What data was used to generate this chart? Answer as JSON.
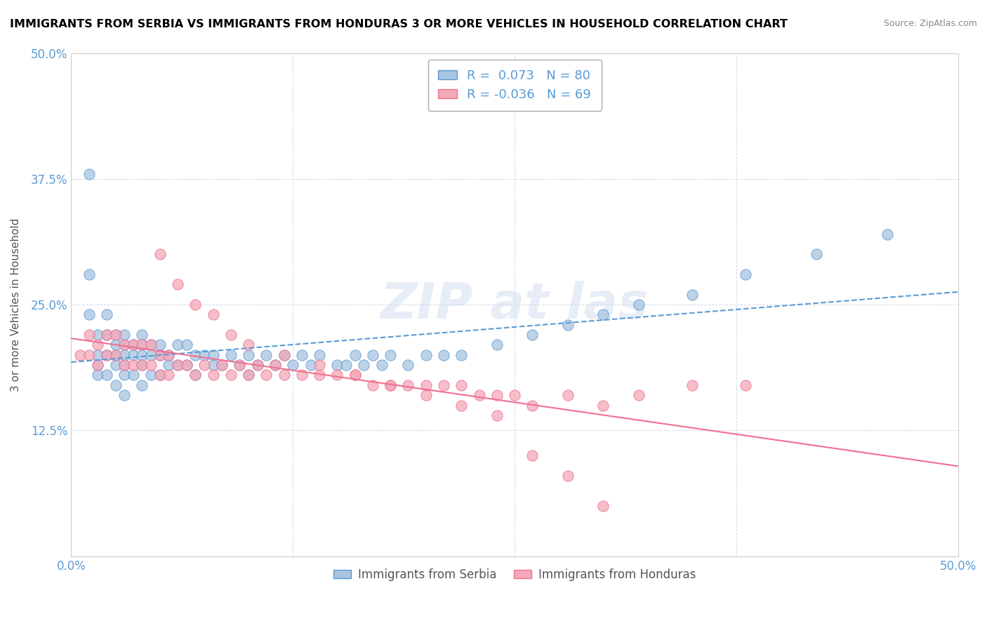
{
  "title": "IMMIGRANTS FROM SERBIA VS IMMIGRANTS FROM HONDURAS 3 OR MORE VEHICLES IN HOUSEHOLD CORRELATION CHART",
  "source": "Source: ZipAtlas.com",
  "xlabel_bottom": "",
  "ylabel": "3 or more Vehicles in Household",
  "xmin": 0.0,
  "xmax": 0.5,
  "ymin": 0.0,
  "ymax": 0.5,
  "xticks": [
    0.0,
    0.125,
    0.25,
    0.375,
    0.5
  ],
  "yticks": [
    0.0,
    0.125,
    0.25,
    0.375,
    0.5
  ],
  "xtick_labels": [
    "0.0%",
    "",
    "",
    "",
    "50.0%"
  ],
  "ytick_labels": [
    "",
    "12.5%",
    "25.0%",
    "37.5%",
    "50.0%"
  ],
  "serbia_color": "#a8c4e0",
  "honduras_color": "#f4a8b8",
  "serbia_R": 0.073,
  "serbia_N": 80,
  "honduras_R": -0.036,
  "honduras_N": 69,
  "serbia_trend_color": "#5b9bd5",
  "honduras_trend_color": "#f07090",
  "legend_label_serbia": "Immigrants from Serbia",
  "legend_label_honduras": "Immigrants from Honduras",
  "watermark": "ZIPat las",
  "serbia_x": [
    0.01,
    0.01,
    0.01,
    0.015,
    0.015,
    0.015,
    0.015,
    0.02,
    0.02,
    0.02,
    0.02,
    0.025,
    0.025,
    0.025,
    0.025,
    0.025,
    0.03,
    0.03,
    0.03,
    0.03,
    0.03,
    0.03,
    0.035,
    0.035,
    0.035,
    0.04,
    0.04,
    0.04,
    0.04,
    0.04,
    0.045,
    0.045,
    0.045,
    0.05,
    0.05,
    0.05,
    0.055,
    0.055,
    0.06,
    0.06,
    0.065,
    0.065,
    0.07,
    0.07,
    0.075,
    0.08,
    0.08,
    0.085,
    0.09,
    0.095,
    0.1,
    0.1,
    0.105,
    0.11,
    0.115,
    0.12,
    0.125,
    0.13,
    0.135,
    0.14,
    0.15,
    0.155,
    0.16,
    0.165,
    0.17,
    0.175,
    0.18,
    0.19,
    0.2,
    0.21,
    0.22,
    0.24,
    0.26,
    0.28,
    0.3,
    0.32,
    0.35,
    0.38,
    0.42,
    0.46
  ],
  "serbia_y": [
    0.38,
    0.28,
    0.24,
    0.22,
    0.2,
    0.19,
    0.18,
    0.24,
    0.22,
    0.2,
    0.18,
    0.22,
    0.21,
    0.2,
    0.19,
    0.17,
    0.22,
    0.21,
    0.2,
    0.19,
    0.18,
    0.16,
    0.21,
    0.2,
    0.18,
    0.22,
    0.21,
    0.2,
    0.19,
    0.17,
    0.21,
    0.2,
    0.18,
    0.21,
    0.2,
    0.18,
    0.2,
    0.19,
    0.21,
    0.19,
    0.21,
    0.19,
    0.2,
    0.18,
    0.2,
    0.2,
    0.19,
    0.19,
    0.2,
    0.19,
    0.2,
    0.18,
    0.19,
    0.2,
    0.19,
    0.2,
    0.19,
    0.2,
    0.19,
    0.2,
    0.19,
    0.19,
    0.2,
    0.19,
    0.2,
    0.19,
    0.2,
    0.19,
    0.2,
    0.2,
    0.2,
    0.21,
    0.22,
    0.23,
    0.24,
    0.25,
    0.26,
    0.28,
    0.3,
    0.32
  ],
  "honduras_x": [
    0.005,
    0.01,
    0.01,
    0.015,
    0.015,
    0.02,
    0.02,
    0.025,
    0.025,
    0.03,
    0.03,
    0.035,
    0.035,
    0.04,
    0.04,
    0.045,
    0.045,
    0.05,
    0.05,
    0.055,
    0.055,
    0.06,
    0.065,
    0.07,
    0.075,
    0.08,
    0.085,
    0.09,
    0.095,
    0.1,
    0.105,
    0.11,
    0.115,
    0.12,
    0.13,
    0.14,
    0.15,
    0.16,
    0.17,
    0.18,
    0.19,
    0.2,
    0.21,
    0.22,
    0.23,
    0.24,
    0.25,
    0.26,
    0.28,
    0.3,
    0.32,
    0.35,
    0.38,
    0.05,
    0.06,
    0.07,
    0.08,
    0.09,
    0.1,
    0.12,
    0.14,
    0.16,
    0.18,
    0.2,
    0.22,
    0.24,
    0.26,
    0.28,
    0.3
  ],
  "honduras_y": [
    0.2,
    0.22,
    0.2,
    0.21,
    0.19,
    0.22,
    0.2,
    0.22,
    0.2,
    0.21,
    0.19,
    0.21,
    0.19,
    0.21,
    0.19,
    0.21,
    0.19,
    0.2,
    0.18,
    0.2,
    0.18,
    0.19,
    0.19,
    0.18,
    0.19,
    0.18,
    0.19,
    0.18,
    0.19,
    0.18,
    0.19,
    0.18,
    0.19,
    0.18,
    0.18,
    0.18,
    0.18,
    0.18,
    0.17,
    0.17,
    0.17,
    0.17,
    0.17,
    0.17,
    0.16,
    0.16,
    0.16,
    0.15,
    0.16,
    0.15,
    0.16,
    0.17,
    0.17,
    0.3,
    0.27,
    0.25,
    0.24,
    0.22,
    0.21,
    0.2,
    0.19,
    0.18,
    0.17,
    0.16,
    0.15,
    0.14,
    0.1,
    0.08,
    0.05
  ]
}
